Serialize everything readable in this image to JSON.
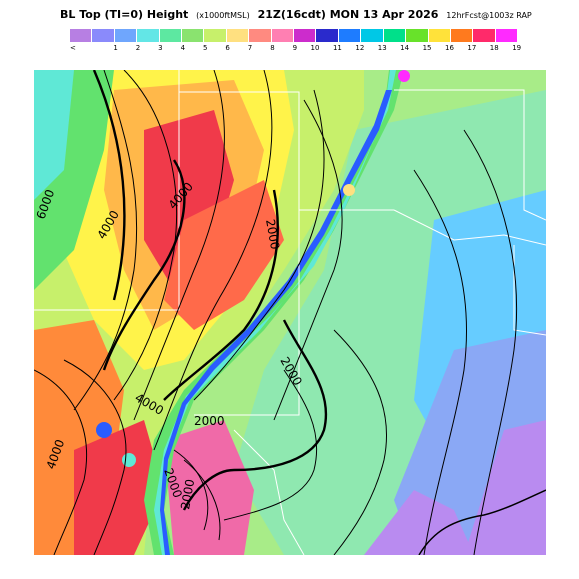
{
  "title": {
    "product": "BL Top (TI=0) Height",
    "units": "(x1000ftMSL)",
    "valid": "21Z(16cdt) MON 13 Apr 2026",
    "forecast": "12hrFcst@1003z RAP"
  },
  "legend": {
    "colors": [
      "#b77fe3",
      "#8a8afb",
      "#6fa6fd",
      "#63e6e6",
      "#5de8a1",
      "#8ae36f",
      "#c7f06b",
      "#ffe080",
      "#ff8a80",
      "#ff7fb2",
      "#cc2ccc",
      "#2a2acc",
      "#1e7cff",
      "#00c8e6",
      "#00e08a",
      "#68e22a",
      "#ffe23a",
      "#ff7a1e",
      "#ff2a6a",
      "#ff2aff"
    ],
    "ticks": [
      "<",
      "1",
      "2",
      "3",
      "4",
      "5",
      "6",
      "7",
      "8",
      "9",
      "10",
      "11",
      "12",
      "13",
      "14",
      "15",
      "16",
      "17",
      "18",
      "19"
    ]
  },
  "map": {
    "contour_labels": [
      "6000",
      "4000",
      "4000",
      "2000",
      "2000",
      "4000",
      "2000",
      "4000",
      "2000",
      "2000"
    ],
    "colors": {
      "light_green": "#a8ec88",
      "green": "#62e26e",
      "cyan": "#5fe8d6",
      "light_blue": "#66ccff",
      "blue": "#2a5cff",
      "purple": "#b98bf0",
      "lavender": "#8aa8f5",
      "yellow": "#fff34a",
      "orange": "#ff8a3a",
      "red": "#f03a4a",
      "pink": "#f06aa8"
    }
  }
}
